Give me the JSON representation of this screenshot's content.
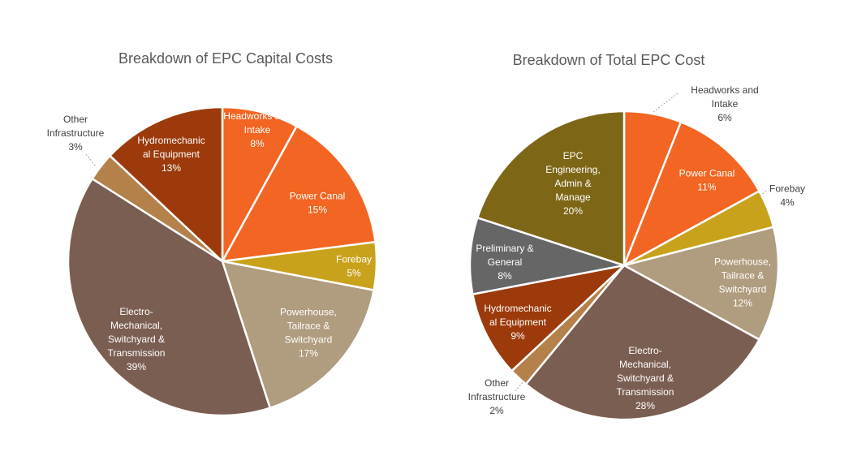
{
  "chart_data": [
    {
      "type": "pie",
      "title": "Breakdown of EPC Capital Costs",
      "slices": [
        {
          "label": [
            "Headworks and",
            "Intake"
          ],
          "value": 8,
          "pct": "8%",
          "color": "#F26522",
          "label_pos": "inside"
        },
        {
          "label": [
            "Power Canal"
          ],
          "value": 15,
          "pct": "15%",
          "color": "#F26522",
          "label_pos": "inside"
        },
        {
          "label": [
            "Forebay"
          ],
          "value": 5,
          "pct": "5%",
          "color": "#C9A21C",
          "label_pos": "inside"
        },
        {
          "label": [
            "Powerhouse,",
            "Tailrace &",
            "Switchyard"
          ],
          "value": 17,
          "pct": "17%",
          "color": "#B09C7E",
          "label_pos": "inside"
        },
        {
          "label": [
            "Electro-",
            "Mechanical,",
            "Switchyard &",
            "Transmission"
          ],
          "value": 39,
          "pct": "39%",
          "color": "#7B5E52",
          "label_pos": "inside"
        },
        {
          "label": [
            "Other",
            "Infrastructure"
          ],
          "value": 3,
          "pct": "3%",
          "color": "#B5814A",
          "label_pos": "outside"
        },
        {
          "label": [
            "Hydromechanic",
            "al Equipment"
          ],
          "value": 13,
          "pct": "13%",
          "color": "#9C3A0C",
          "label_pos": "inside"
        }
      ]
    },
    {
      "type": "pie",
      "title": "Breakdown of Total EPC Cost",
      "slices": [
        {
          "label": [
            "Headworks and",
            "Intake"
          ],
          "value": 6,
          "pct": "6%",
          "color": "#F26522",
          "label_pos": "outside"
        },
        {
          "label": [
            "Power Canal"
          ],
          "value": 11,
          "pct": "11%",
          "color": "#F26522",
          "label_pos": "inside"
        },
        {
          "label": [
            "Forebay"
          ],
          "value": 4,
          "pct": "4%",
          "color": "#C9A21C",
          "label_pos": "outside"
        },
        {
          "label": [
            "Powerhouse,",
            "Tailrace &",
            "Switchyard"
          ],
          "value": 12,
          "pct": "12%",
          "color": "#B09C7E",
          "label_pos": "inside"
        },
        {
          "label": [
            "Electro-",
            "Mechanical,",
            "Switchyard &",
            "Transmission"
          ],
          "value": 28,
          "pct": "28%",
          "color": "#7B5E52",
          "label_pos": "inside"
        },
        {
          "label": [
            "Other",
            "Infrastructure"
          ],
          "value": 2,
          "pct": "2%",
          "color": "#B5814A",
          "label_pos": "outside"
        },
        {
          "label": [
            "Hydromechanic",
            "al Equipment"
          ],
          "value": 9,
          "pct": "9%",
          "color": "#9C3A0C",
          "label_pos": "inside"
        },
        {
          "label": [
            "Preliminary &",
            "General"
          ],
          "value": 8,
          "pct": "8%",
          "color": "#666666",
          "label_pos": "inside"
        },
        {
          "label": [
            "EPC",
            "Engineering,",
            "Admin &",
            "Manage"
          ],
          "value": 20,
          "pct": "20%",
          "color": "#7D6616",
          "label_pos": "inside"
        }
      ]
    }
  ]
}
